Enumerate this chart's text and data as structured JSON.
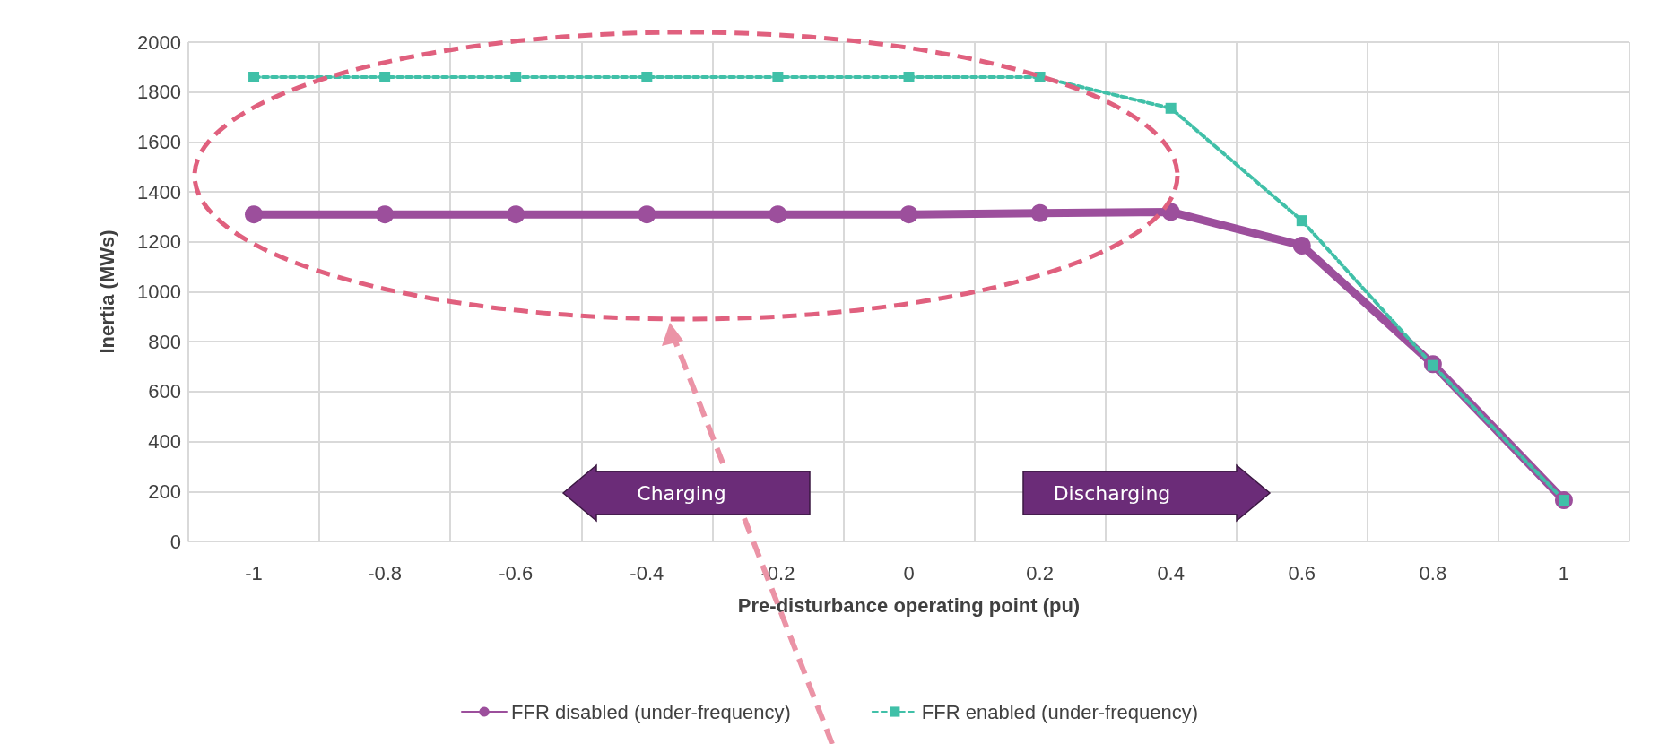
{
  "chart_data": {
    "type": "line",
    "xlabel": "Pre-disturbance operating point (pu)",
    "ylabel": "Inertia (MWs)",
    "categories": [
      "-1",
      "-0.8",
      "-0.6",
      "-0.4",
      "-0.2",
      "0",
      "0.2",
      "0.4",
      "0.6",
      "0.8",
      "1"
    ],
    "series": [
      {
        "name": "FFR disabled (under-frequency)",
        "color": "#9c4f9c",
        "marker": "circle",
        "line_style": "solid",
        "values": [
          1310,
          1310,
          1310,
          1310,
          1310,
          1310,
          1315,
          1320,
          1185,
          710,
          165
        ]
      },
      {
        "name": "FFR enabled (under-frequency)",
        "color": "#40c0a8",
        "marker": "square",
        "line_style": "dashed",
        "values": [
          1860,
          1860,
          1860,
          1860,
          1860,
          1860,
          1860,
          1735,
          1285,
          705,
          165
        ]
      }
    ],
    "ylim": [
      0,
      2000
    ],
    "yticks": [
      0,
      200,
      400,
      600,
      800,
      1000,
      1200,
      1400,
      1600,
      1800,
      2000
    ],
    "grid": true,
    "legend": "bottom",
    "annotations": [
      "Charging",
      "Discharging"
    ]
  }
}
